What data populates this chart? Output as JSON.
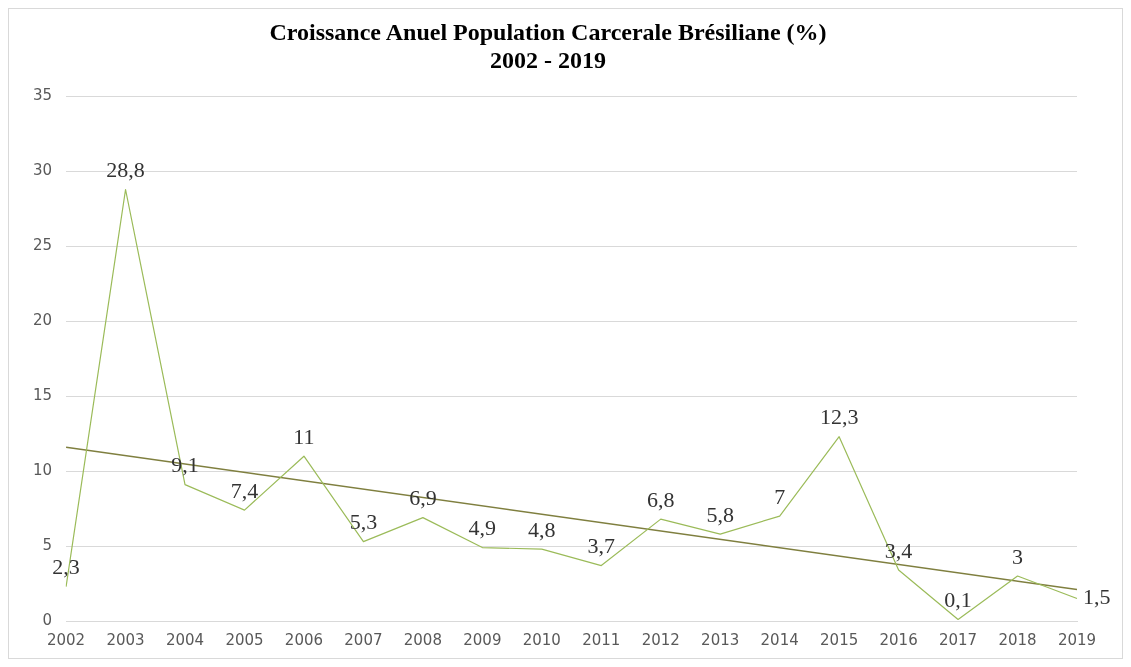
{
  "chart_data": {
    "type": "line",
    "title": "Croissance Anuel Population Carcerale Brésiliane (%)\n2002 - 2019",
    "categories": [
      "2002",
      "2003",
      "2004",
      "2005",
      "2006",
      "2007",
      "2008",
      "2009",
      "2010",
      "2011",
      "2012",
      "2013",
      "2014",
      "2015",
      "2016",
      "2017",
      "2018",
      "2019"
    ],
    "series": [
      {
        "type": "line",
        "color": "#9bbb59",
        "values": [
          2.3,
          28.8,
          9.1,
          7.4,
          11,
          5.3,
          6.9,
          4.9,
          4.8,
          3.7,
          6.8,
          5.8,
          7,
          12.3,
          3.4,
          0.1,
          3,
          1.5
        ],
        "value_labels": [
          "2,3",
          "28,8",
          "9,1",
          "7,4",
          "11",
          "5,3",
          "6,9",
          "4,9",
          "4,8",
          "3,7",
          "6,8",
          "5,8",
          "7",
          "12,3",
          "3,4",
          "0,1",
          "3",
          "1,5"
        ]
      },
      {
        "type": "line",
        "color": "#7f7f3f",
        "values": [
          11.6,
          null,
          null,
          null,
          null,
          null,
          null,
          null,
          null,
          null,
          null,
          null,
          null,
          null,
          null,
          null,
          null,
          2.1
        ]
      }
    ],
    "ylim": [
      0,
      35
    ],
    "yticks": [
      0,
      5,
      10,
      15,
      20,
      25,
      30,
      35
    ],
    "grid": "y",
    "legend": false,
    "marker": "none",
    "line_style": "solid"
  }
}
